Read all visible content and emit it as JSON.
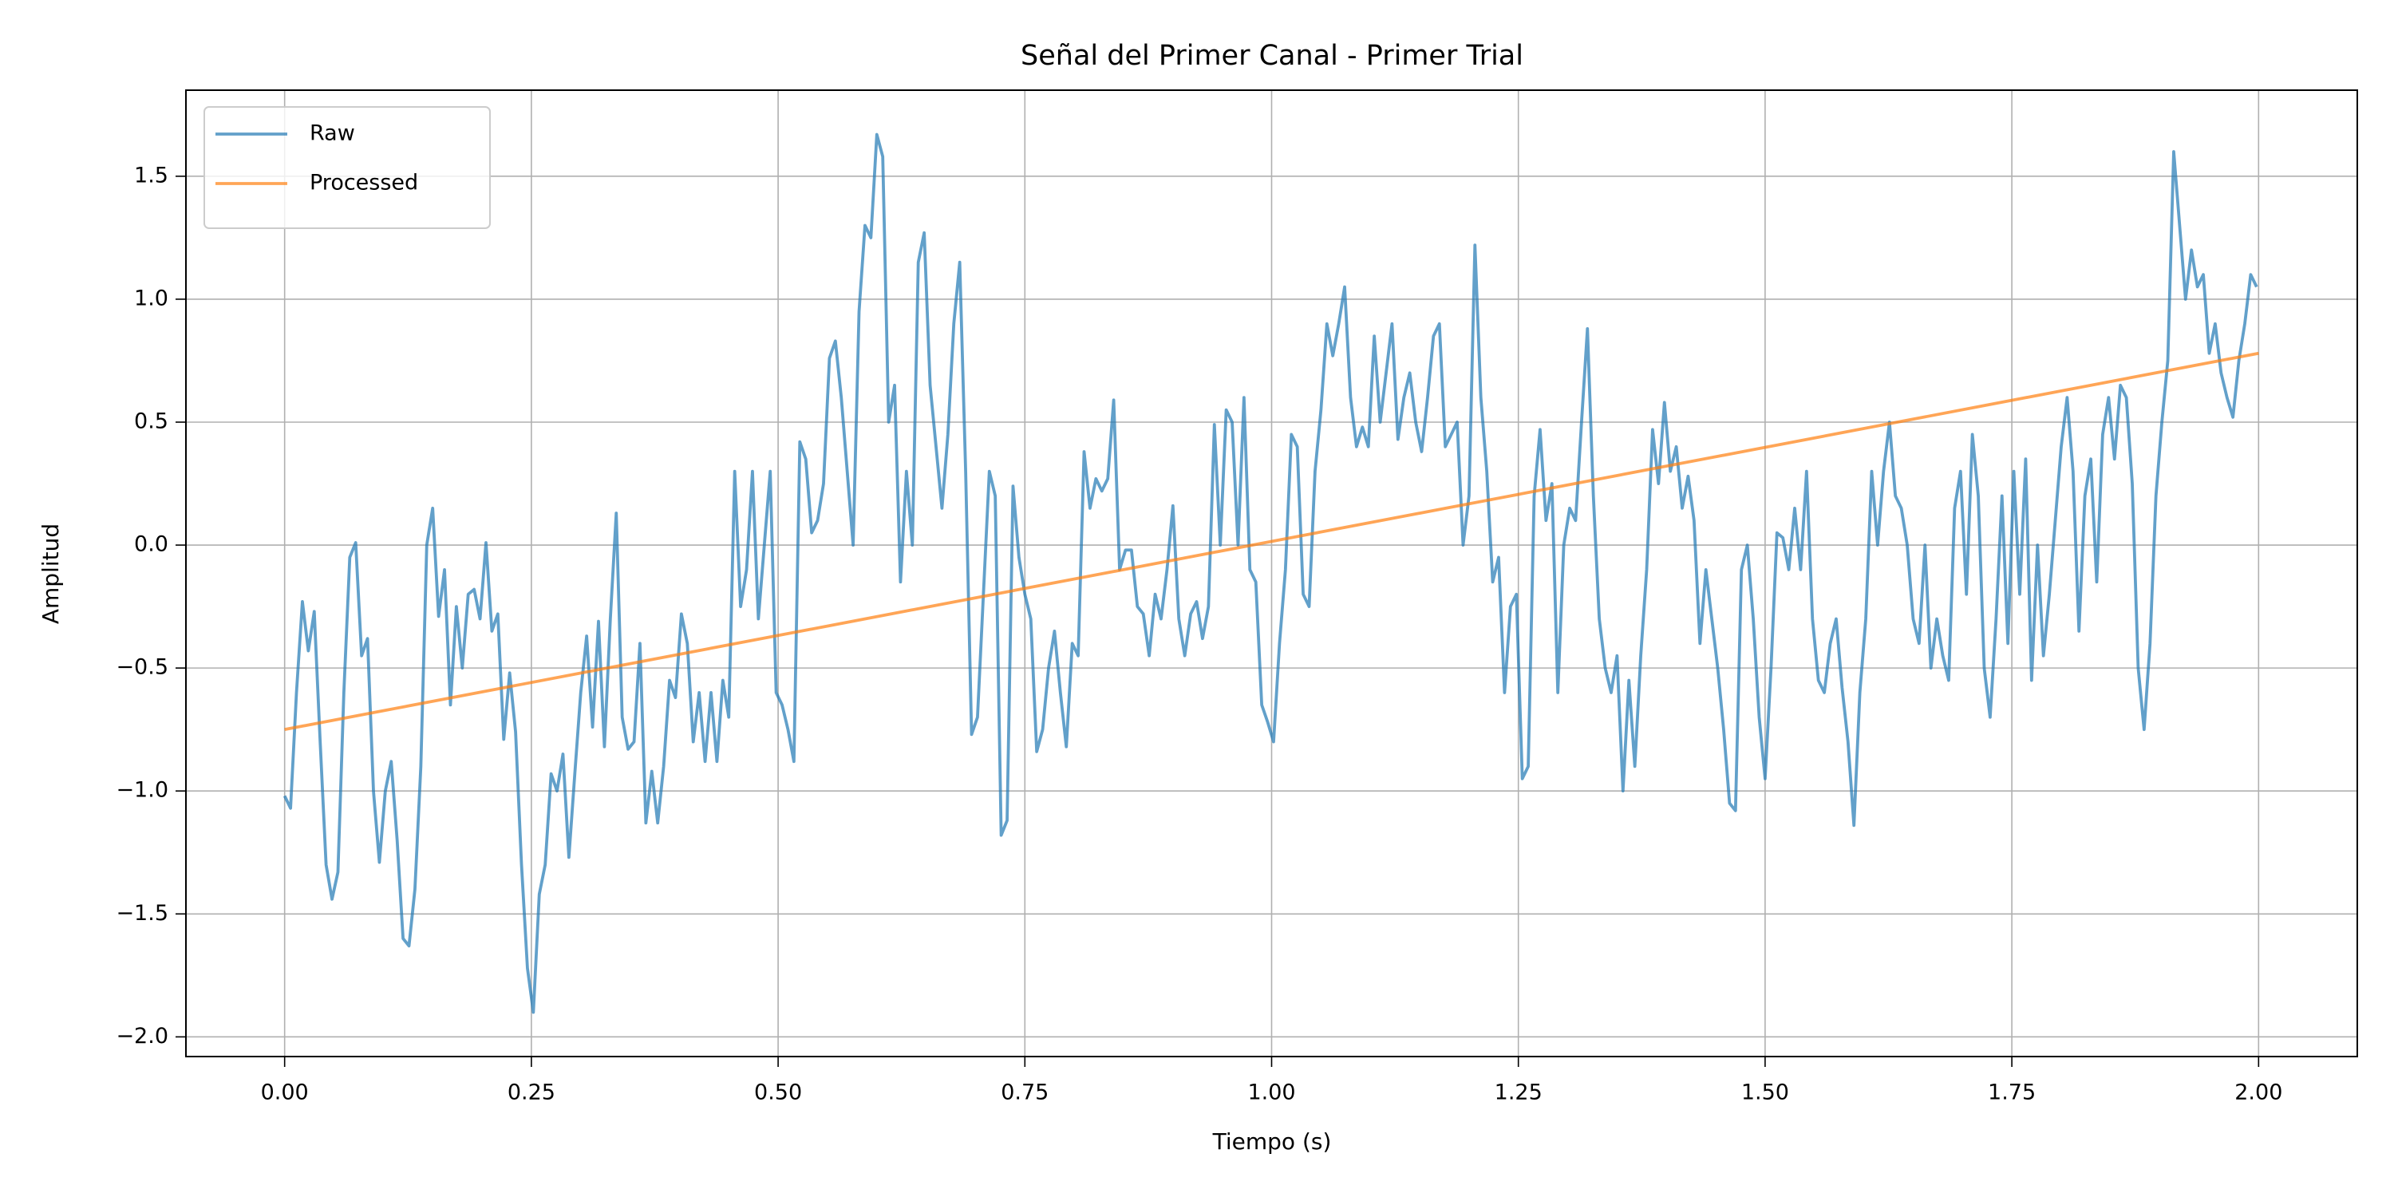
{
  "chart_data": {
    "type": "line",
    "title": "Señal del Primer Canal - Primer Trial",
    "x_label": "Tiempo (s)",
    "y_label": "Amplitud",
    "xlim": [
      -0.1,
      2.1
    ],
    "ylim": [
      -2.08,
      1.85
    ],
    "xticks": [
      {
        "value": 0,
        "label": "0.00"
      },
      {
        "value": 0.25,
        "label": "0.25"
      },
      {
        "value": 0.5,
        "label": "0.50"
      },
      {
        "value": 0.75,
        "label": "0.75"
      },
      {
        "value": 1,
        "label": "1.00"
      },
      {
        "value": 1.25,
        "label": "1.25"
      },
      {
        "value": 1.5,
        "label": "1.50"
      },
      {
        "value": 1.75,
        "label": "1.75"
      },
      {
        "value": 2,
        "label": "2.00"
      }
    ],
    "yticks": [
      {
        "value": -2,
        "label": "−2.0"
      },
      {
        "value": -1.5,
        "label": "−1.5"
      },
      {
        "value": -1,
        "label": "−1.0"
      },
      {
        "value": -0.5,
        "label": "−0.5"
      },
      {
        "value": 0,
        "label": "0.0"
      },
      0.5,
      {
        "value": 1,
        "label": "1.0"
      },
      1.5
    ],
    "grid": true,
    "legend": "upper-left",
    "series": [
      {
        "name": "Raw",
        "color": "#1f77b4",
        "alpha": 0.7,
        "x": [
          0,
          0.006,
          0.012,
          0.018,
          0.024,
          0.03,
          0.036,
          0.042,
          0.048,
          0.054,
          0.06,
          0.066,
          0.072,
          0.078,
          0.084,
          0.09,
          0.096,
          0.102,
          0.108,
          0.114,
          0.12,
          0.126,
          0.132,
          0.138,
          0.144,
          0.15,
          0.156,
          0.162,
          0.168,
          0.174,
          0.18,
          0.186,
          0.192,
          0.198,
          0.204,
          0.21,
          0.216,
          0.222,
          0.228,
          0.234,
          0.24,
          0.246,
          0.252,
          0.258,
          0.264,
          0.27,
          0.276,
          0.282,
          0.288,
          0.294,
          0.3,
          0.306,
          0.312,
          0.318,
          0.324,
          0.33,
          0.336,
          0.342,
          0.348,
          0.354,
          0.36,
          0.366,
          0.372,
          0.378,
          0.384,
          0.39,
          0.396,
          0.402,
          0.408,
          0.414,
          0.42,
          0.426,
          0.432,
          0.438,
          0.444,
          0.45,
          0.456,
          0.462,
          0.468,
          0.474,
          0.48,
          0.486,
          0.492,
          0.498,
          0.504,
          0.51,
          0.516,
          0.522,
          0.528,
          0.534,
          0.54,
          0.546,
          0.552,
          0.558,
          0.564,
          0.57,
          0.576,
          0.582,
          0.588,
          0.594,
          0.6,
          0.606,
          0.612,
          0.618,
          0.624,
          0.63,
          0.636,
          0.642,
          0.648,
          0.654,
          0.66,
          0.666,
          0.672,
          0.678,
          0.684,
          0.69,
          0.696,
          0.702,
          0.708,
          0.714,
          0.72,
          0.726,
          0.732,
          0.738,
          0.744,
          0.75,
          0.756,
          0.762,
          0.768,
          0.774,
          0.78,
          0.786,
          0.792,
          0.798,
          0.804,
          0.81,
          0.816,
          0.822,
          0.828,
          0.834,
          0.84,
          0.846,
          0.852,
          0.858,
          0.864,
          0.87,
          0.876,
          0.882,
          0.888,
          0.894,
          0.9,
          0.906,
          0.912,
          0.918,
          0.924,
          0.93,
          0.936,
          0.942,
          0.948,
          0.954,
          0.96,
          0.966,
          0.972,
          0.978,
          0.984,
          0.99,
          0.996,
          1.002,
          1.008,
          1.014,
          1.02,
          1.026,
          1.032,
          1.038,
          1.044,
          1.05,
          1.056,
          1.062,
          1.068,
          1.074,
          1.08,
          1.086,
          1.092,
          1.098,
          1.104,
          1.11,
          1.116,
          1.122,
          1.128,
          1.134,
          1.14,
          1.146,
          1.152,
          1.158,
          1.164,
          1.17,
          1.176,
          1.182,
          1.188,
          1.194,
          1.2,
          1.206,
          1.212,
          1.218,
          1.224,
          1.23,
          1.236,
          1.242,
          1.248,
          1.254,
          1.26,
          1.266,
          1.272,
          1.278,
          1.284,
          1.29,
          1.296,
          1.302,
          1.308,
          1.314,
          1.32,
          1.326,
          1.332,
          1.338,
          1.344,
          1.35,
          1.356,
          1.362,
          1.368,
          1.374,
          1.38,
          1.386,
          1.392,
          1.398,
          1.404,
          1.41,
          1.416,
          1.422,
          1.428,
          1.434,
          1.44,
          1.446,
          1.452,
          1.458,
          1.464,
          1.47,
          1.476,
          1.482,
          1.488,
          1.494,
          1.5,
          1.506,
          1.512,
          1.518,
          1.524,
          1.53,
          1.536,
          1.542,
          1.548,
          1.554,
          1.56,
          1.566,
          1.572,
          1.578,
          1.584,
          1.59,
          1.596,
          1.602,
          1.608,
          1.614,
          1.62,
          1.626,
          1.632,
          1.638,
          1.644,
          1.65,
          1.656,
          1.662,
          1.668,
          1.674,
          1.68,
          1.686,
          1.692,
          1.698,
          1.704,
          1.71,
          1.716,
          1.722,
          1.728,
          1.734,
          1.74,
          1.746,
          1.752,
          1.758,
          1.764,
          1.77,
          1.776,
          1.782,
          1.788,
          1.794,
          1.8,
          1.806,
          1.812,
          1.818,
          1.824,
          1.83,
          1.836,
          1.842,
          1.848,
          1.854,
          1.86,
          1.866,
          1.872,
          1.878,
          1.884,
          1.89,
          1.896,
          1.902,
          1.908,
          1.914,
          1.92,
          1.926,
          1.932,
          1.938,
          1.944,
          1.95,
          1.956,
          1.962,
          1.968,
          1.974,
          1.98,
          1.986,
          1.992,
          1.998
        ],
        "values": [
          -1.02,
          -1.07,
          -0.6,
          -0.23,
          -0.43,
          -0.27,
          -0.8,
          -1.3,
          -1.44,
          -1.33,
          -0.6,
          -0.05,
          0.01,
          -0.45,
          -0.38,
          -1.0,
          -1.29,
          -1.0,
          -0.88,
          -1.2,
          -1.6,
          -1.63,
          -1.4,
          -0.9,
          0.0,
          0.15,
          -0.29,
          -0.1,
          -0.65,
          -0.25,
          -0.5,
          -0.2,
          -0.18,
          -0.3,
          0.01,
          -0.35,
          -0.28,
          -0.79,
          -0.52,
          -0.76,
          -1.3,
          -1.72,
          -1.9,
          -1.42,
          -1.3,
          -0.93,
          -1.0,
          -0.85,
          -1.27,
          -0.93,
          -0.6,
          -0.37,
          -0.74,
          -0.31,
          -0.82,
          -0.3,
          0.13,
          -0.7,
          -0.83,
          -0.8,
          -0.4,
          -1.13,
          -0.92,
          -1.13,
          -0.9,
          -0.55,
          -0.62,
          -0.28,
          -0.4,
          -0.8,
          -0.6,
          -0.88,
          -0.6,
          -0.88,
          -0.55,
          -0.7,
          0.3,
          -0.25,
          -0.1,
          0.3,
          -0.3,
          0.0,
          0.3,
          -0.6,
          -0.65,
          -0.75,
          -0.88,
          0.42,
          0.35,
          0.05,
          0.1,
          0.25,
          0.76,
          0.83,
          0.6,
          0.3,
          0.0,
          0.95,
          1.3,
          1.25,
          1.67,
          1.58,
          0.5,
          0.65,
          -0.15,
          0.3,
          0.0,
          1.15,
          1.27,
          0.65,
          0.4,
          0.15,
          0.45,
          0.9,
          1.15,
          0.3,
          -0.77,
          -0.7,
          -0.2,
          0.3,
          0.2,
          -1.18,
          -1.12,
          0.24,
          -0.05,
          -0.2,
          -0.3,
          -0.84,
          -0.75,
          -0.5,
          -0.35,
          -0.6,
          -0.82,
          -0.4,
          -0.45,
          0.38,
          0.15,
          0.27,
          0.22,
          0.27,
          0.59,
          -0.1,
          -0.02,
          -0.02,
          -0.25,
          -0.28,
          -0.45,
          -0.2,
          -0.3,
          -0.1,
          0.16,
          -0.3,
          -0.45,
          -0.28,
          -0.23,
          -0.38,
          -0.25,
          0.49,
          0.0,
          0.55,
          0.5,
          0.0,
          0.6,
          -0.1,
          -0.15,
          -0.65,
          -0.72,
          -0.8,
          -0.4,
          -0.1,
          0.45,
          0.4,
          -0.2,
          -0.25,
          0.3,
          0.55,
          0.9,
          0.77,
          0.9,
          1.05,
          0.6,
          0.4,
          0.48,
          0.4,
          0.85,
          0.5,
          0.7,
          0.9,
          0.43,
          0.6,
          0.7,
          0.5,
          0.38,
          0.6,
          0.85,
          0.9,
          0.4,
          0.45,
          0.5,
          0.0,
          0.2,
          1.22,
          0.6,
          0.3,
          -0.15,
          -0.05,
          -0.6,
          -0.25,
          -0.2,
          -0.95,
          -0.9,
          0.2,
          0.47,
          0.1,
          0.25,
          -0.6,
          0.0,
          0.15,
          0.1,
          0.5,
          0.88,
          0.2,
          -0.3,
          -0.5,
          -0.6,
          -0.45,
          -1.0,
          -0.55,
          -0.9,
          -0.45,
          -0.1,
          0.47,
          0.25,
          0.58,
          0.3,
          0.4,
          0.15,
          0.28,
          0.1,
          -0.4,
          -0.1,
          -0.3,
          -0.5,
          -0.75,
          -1.05,
          -1.08,
          -0.1,
          0.0,
          -0.3,
          -0.7,
          -0.95,
          -0.5,
          0.05,
          0.03,
          -0.1,
          0.15,
          -0.1,
          0.3,
          -0.3,
          -0.55,
          -0.6,
          -0.4,
          -0.3,
          -0.58,
          -0.8,
          -1.14,
          -0.6,
          -0.3,
          0.3,
          0.0,
          0.3,
          0.5,
          0.2,
          0.15,
          0.0,
          -0.3,
          -0.4,
          0.0,
          -0.5,
          -0.3,
          -0.45,
          -0.55,
          0.15,
          0.3,
          -0.2,
          0.45,
          0.2,
          -0.5,
          -0.7,
          -0.3,
          0.2,
          -0.4,
          0.3,
          -0.2,
          0.35,
          -0.55,
          0.0,
          -0.45,
          -0.2,
          0.1,
          0.4,
          0.6,
          0.3,
          -0.35,
          0.2,
          0.35,
          -0.15,
          0.45,
          0.6,
          0.35,
          0.65,
          0.6,
          0.25,
          -0.5,
          -0.75,
          -0.4,
          0.2,
          0.5,
          0.75,
          1.6,
          1.3,
          1.0,
          1.2,
          1.05,
          1.1,
          0.78,
          0.9,
          0.7,
          0.6,
          0.52,
          0.75,
          0.9,
          1.1,
          1.05
        ]
      },
      {
        "name": "Processed",
        "color": "#ff7f0e",
        "alpha": 0.7,
        "x": [
          0,
          2
        ],
        "values": [
          -0.75,
          0.78
        ]
      }
    ]
  }
}
